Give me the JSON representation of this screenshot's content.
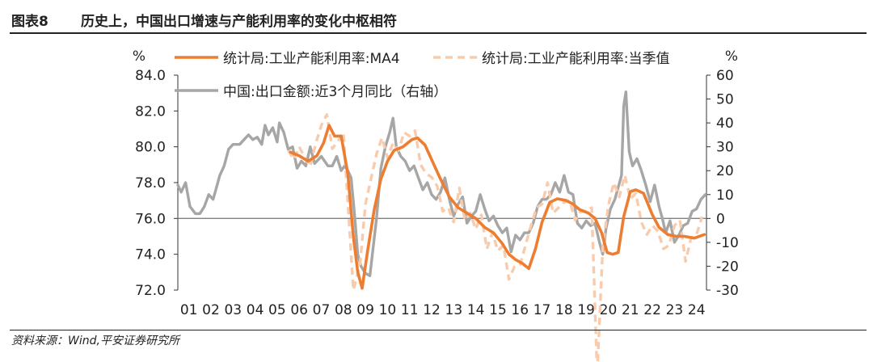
{
  "header": {
    "figure_label": "图表8",
    "title": "历史上，中国出口增速与产能利用率的变化中枢相符"
  },
  "footer": {
    "source": "资料来源：Wind,平安证券研究所"
  },
  "colors": {
    "ma4": "#ED7D31",
    "quarterly": "#F8CBAD",
    "export": "#A6A6A6",
    "baseline": "#808080"
  },
  "chart_data": {
    "type": "line",
    "title": "",
    "left_unit": "%",
    "right_unit": "%",
    "ylim_left": [
      72.0,
      84.0
    ],
    "ylim_right": [
      -30,
      60
    ],
    "yticks_left": [
      "84.0",
      "82.0",
      "80.0",
      "78.0",
      "76.0",
      "74.0",
      "72.0"
    ],
    "yticks_right": [
      "60",
      "50",
      "40",
      "30",
      "20",
      "10",
      "0",
      "-10",
      "-20",
      "-30"
    ],
    "xticks": [
      "01",
      "02",
      "03",
      "04",
      "05",
      "06",
      "07",
      "08",
      "09",
      "10",
      "11",
      "12",
      "13",
      "14",
      "15",
      "16",
      "17",
      "18",
      "19",
      "20",
      "21",
      "22",
      "23",
      "24"
    ],
    "xlim": [
      2001.0,
      2024.95
    ],
    "baseline_right": 0,
    "legend": {
      "ma4": "统计局:工业产能利用率:MA4",
      "quarterly": "统计局:工业产能利用率:当季值",
      "export": "中国:出口金额:近3个月同比（右轴）"
    },
    "series": [
      {
        "name": "统计局:工业产能利用率:MA4",
        "key": "ma4",
        "axis": "left",
        "points": [
          [
            2006.1,
            79.7
          ],
          [
            2006.5,
            79.5
          ],
          [
            2006.9,
            79.2
          ],
          [
            2007.3,
            79.5
          ],
          [
            2007.6,
            80.2
          ],
          [
            2007.85,
            81.2
          ],
          [
            2008.1,
            80.6
          ],
          [
            2008.4,
            80.6
          ],
          [
            2008.7,
            78.5
          ],
          [
            2008.95,
            75.0
          ],
          [
            2009.15,
            73.0
          ],
          [
            2009.35,
            72.1
          ],
          [
            2009.6,
            74.2
          ],
          [
            2009.9,
            76.5
          ],
          [
            2010.2,
            78.2
          ],
          [
            2010.5,
            79.2
          ],
          [
            2010.8,
            79.8
          ],
          [
            2011.2,
            80.0
          ],
          [
            2011.6,
            80.4
          ],
          [
            2011.85,
            80.5
          ],
          [
            2012.2,
            80.1
          ],
          [
            2012.6,
            79.0
          ],
          [
            2012.9,
            78.2
          ],
          [
            2013.3,
            77.2
          ],
          [
            2013.7,
            76.6
          ],
          [
            2014.1,
            76.3
          ],
          [
            2014.5,
            76.0
          ],
          [
            2014.9,
            75.5
          ],
          [
            2015.3,
            75.2
          ],
          [
            2015.7,
            74.6
          ],
          [
            2016.0,
            74.0
          ],
          [
            2016.3,
            73.7
          ],
          [
            2016.6,
            73.5
          ],
          [
            2016.9,
            73.2
          ],
          [
            2017.2,
            74.3
          ],
          [
            2017.5,
            75.8
          ],
          [
            2017.85,
            76.9
          ],
          [
            2018.2,
            77.1
          ],
          [
            2018.6,
            77.0
          ],
          [
            2018.9,
            76.8
          ],
          [
            2019.2,
            76.5
          ],
          [
            2019.6,
            76.3
          ],
          [
            2019.9,
            76.0
          ],
          [
            2020.2,
            75.2
          ],
          [
            2020.45,
            74.1
          ],
          [
            2020.7,
            74.0
          ],
          [
            2020.95,
            74.1
          ],
          [
            2021.2,
            76.1
          ],
          [
            2021.5,
            77.5
          ],
          [
            2021.75,
            77.6
          ],
          [
            2022.1,
            77.4
          ],
          [
            2022.5,
            76.2
          ],
          [
            2022.8,
            75.5
          ],
          [
            2023.2,
            75.1
          ],
          [
            2023.6,
            75.0
          ],
          [
            2023.95,
            75.0
          ],
          [
            2024.4,
            74.9
          ],
          [
            2024.85,
            75.1
          ]
        ]
      },
      {
        "name": "统计局:工业产能利用率:当季值",
        "key": "quarterly",
        "axis": "left",
        "points": [
          [
            2006.0,
            79.8
          ],
          [
            2006.25,
            79.3
          ],
          [
            2006.5,
            80.0
          ],
          [
            2006.75,
            79.4
          ],
          [
            2007.0,
            78.9
          ],
          [
            2007.25,
            80.2
          ],
          [
            2007.5,
            81.2
          ],
          [
            2007.75,
            81.8
          ],
          [
            2008.0,
            79.9
          ],
          [
            2008.25,
            80.3
          ],
          [
            2008.5,
            80.8
          ],
          [
            2008.75,
            76.0
          ],
          [
            2008.95,
            72.0
          ],
          [
            2009.25,
            73.4
          ],
          [
            2009.5,
            76.8
          ],
          [
            2009.75,
            78.2
          ],
          [
            2010.0,
            79.6
          ],
          [
            2010.25,
            80.5
          ],
          [
            2010.5,
            79.4
          ],
          [
            2010.75,
            80.2
          ],
          [
            2011.0,
            79.8
          ],
          [
            2011.25,
            80.8
          ],
          [
            2011.5,
            80.6
          ],
          [
            2011.75,
            80.9
          ],
          [
            2012.0,
            79.0
          ],
          [
            2012.25,
            78.5
          ],
          [
            2012.5,
            78.3
          ],
          [
            2012.75,
            77.8
          ],
          [
            2013.0,
            76.4
          ],
          [
            2013.25,
            76.6
          ],
          [
            2013.5,
            75.8
          ],
          [
            2013.75,
            77.7
          ],
          [
            2014.0,
            75.9
          ],
          [
            2014.25,
            76.3
          ],
          [
            2014.5,
            75.4
          ],
          [
            2014.75,
            76.2
          ],
          [
            2015.0,
            74.3
          ],
          [
            2015.25,
            75.2
          ],
          [
            2015.5,
            74.2
          ],
          [
            2015.75,
            74.5
          ],
          [
            2016.0,
            72.6
          ],
          [
            2016.25,
            73.3
          ],
          [
            2016.5,
            73.4
          ],
          [
            2016.75,
            74.5
          ],
          [
            2017.0,
            75.6
          ],
          [
            2017.25,
            76.6
          ],
          [
            2017.5,
            76.8
          ],
          [
            2017.75,
            78.0
          ],
          [
            2018.0,
            76.3
          ],
          [
            2018.25,
            76.6
          ],
          [
            2018.5,
            76.9
          ],
          [
            2018.75,
            77.0
          ],
          [
            2019.0,
            75.9
          ],
          [
            2019.25,
            76.4
          ],
          [
            2019.5,
            76.4
          ],
          [
            2019.75,
            76.6
          ],
          [
            2020.0,
            67.3
          ],
          [
            2020.25,
            74.4
          ],
          [
            2020.5,
            76.7
          ],
          [
            2020.75,
            78.0
          ],
          [
            2021.0,
            77.2
          ],
          [
            2021.25,
            78.4
          ],
          [
            2021.5,
            77.1
          ],
          [
            2021.75,
            77.4
          ],
          [
            2022.0,
            75.8
          ],
          [
            2022.25,
            75.1
          ],
          [
            2022.5,
            75.6
          ],
          [
            2022.75,
            75.3
          ],
          [
            2023.0,
            74.3
          ],
          [
            2023.25,
            74.5
          ],
          [
            2023.5,
            75.6
          ],
          [
            2023.75,
            75.9
          ],
          [
            2024.0,
            73.6
          ],
          [
            2024.25,
            74.9
          ],
          [
            2024.5,
            75.1
          ],
          [
            2024.75,
            76.1
          ]
        ]
      },
      {
        "name": "中国:出口金额:近3个月同比（右轴）",
        "key": "export",
        "axis": "right",
        "points": [
          [
            2001.0,
            14
          ],
          [
            2001.15,
            11
          ],
          [
            2001.35,
            15
          ],
          [
            2001.55,
            5
          ],
          [
            2001.8,
            2
          ],
          [
            2002.0,
            2
          ],
          [
            2002.2,
            5
          ],
          [
            2002.4,
            10
          ],
          [
            2002.6,
            8
          ],
          [
            2002.9,
            18
          ],
          [
            2003.1,
            22
          ],
          [
            2003.3,
            29
          ],
          [
            2003.5,
            31
          ],
          [
            2003.8,
            31
          ],
          [
            2004.0,
            33
          ],
          [
            2004.2,
            35
          ],
          [
            2004.4,
            33
          ],
          [
            2004.6,
            34
          ],
          [
            2004.8,
            31
          ],
          [
            2004.95,
            39
          ],
          [
            2005.1,
            35
          ],
          [
            2005.3,
            38
          ],
          [
            2005.5,
            32
          ],
          [
            2005.6,
            40
          ],
          [
            2005.8,
            36
          ],
          [
            2006.0,
            29
          ],
          [
            2006.2,
            30
          ],
          [
            2006.4,
            21
          ],
          [
            2006.6,
            24
          ],
          [
            2006.8,
            22
          ],
          [
            2007.0,
            30
          ],
          [
            2007.2,
            23
          ],
          [
            2007.5,
            26
          ],
          [
            2007.8,
            22
          ],
          [
            2008.0,
            22
          ],
          [
            2008.2,
            26
          ],
          [
            2008.4,
            20
          ],
          [
            2008.55,
            22
          ],
          [
            2008.7,
            20
          ],
          [
            2008.85,
            17
          ],
          [
            2009.0,
            2
          ],
          [
            2009.15,
            -15
          ],
          [
            2009.3,
            -20
          ],
          [
            2009.5,
            -23
          ],
          [
            2009.7,
            -24
          ],
          [
            2009.85,
            -12
          ],
          [
            2010.0,
            0
          ],
          [
            2010.2,
            21
          ],
          [
            2010.4,
            30
          ],
          [
            2010.6,
            36
          ],
          [
            2010.75,
            42
          ],
          [
            2010.9,
            30
          ],
          [
            2011.1,
            26
          ],
          [
            2011.3,
            24
          ],
          [
            2011.5,
            20
          ],
          [
            2011.7,
            22
          ],
          [
            2011.9,
            17
          ],
          [
            2012.1,
            12
          ],
          [
            2012.3,
            15
          ],
          [
            2012.5,
            10
          ],
          [
            2012.7,
            8
          ],
          [
            2012.9,
            11
          ],
          [
            2013.1,
            17
          ],
          [
            2013.3,
            8
          ],
          [
            2013.5,
            1
          ],
          [
            2013.7,
            6
          ],
          [
            2013.9,
            9
          ],
          [
            2014.1,
            -2
          ],
          [
            2014.3,
            1
          ],
          [
            2014.5,
            3
          ],
          [
            2014.7,
            10
          ],
          [
            2014.9,
            4
          ],
          [
            2015.1,
            -1
          ],
          [
            2015.3,
            1
          ],
          [
            2015.5,
            -3
          ],
          [
            2015.7,
            -6
          ],
          [
            2015.9,
            -4
          ],
          [
            2016.1,
            -14
          ],
          [
            2016.3,
            -7
          ],
          [
            2016.5,
            -9
          ],
          [
            2016.7,
            -6
          ],
          [
            2016.9,
            -6
          ],
          [
            2017.1,
            -2
          ],
          [
            2017.3,
            5
          ],
          [
            2017.5,
            8
          ],
          [
            2017.7,
            8
          ],
          [
            2017.9,
            10
          ],
          [
            2018.1,
            15
          ],
          [
            2018.3,
            11
          ],
          [
            2018.5,
            18
          ],
          [
            2018.7,
            11
          ],
          [
            2018.9,
            10
          ],
          [
            2019.1,
            -2
          ],
          [
            2019.3,
            -4
          ],
          [
            2019.5,
            -1
          ],
          [
            2019.7,
            -3
          ],
          [
            2019.9,
            -2
          ],
          [
            2020.1,
            -10
          ],
          [
            2020.25,
            -15
          ],
          [
            2020.4,
            -4
          ],
          [
            2020.6,
            4
          ],
          [
            2020.8,
            8
          ],
          [
            2020.95,
            13
          ],
          [
            2021.1,
            18
          ],
          [
            2021.2,
            47
          ],
          [
            2021.3,
            53
          ],
          [
            2021.45,
            28
          ],
          [
            2021.6,
            22
          ],
          [
            2021.8,
            25
          ],
          [
            2022.0,
            20
          ],
          [
            2022.2,
            14
          ],
          [
            2022.4,
            7
          ],
          [
            2022.6,
            14
          ],
          [
            2022.8,
            5
          ],
          [
            2022.95,
            0
          ],
          [
            2023.1,
            -6
          ],
          [
            2023.3,
            -1
          ],
          [
            2023.5,
            -10
          ],
          [
            2023.7,
            -7
          ],
          [
            2023.9,
            -3
          ],
          [
            2024.1,
            -2
          ],
          [
            2024.3,
            3
          ],
          [
            2024.5,
            4
          ],
          [
            2024.7,
            8
          ],
          [
            2024.9,
            10
          ]
        ]
      }
    ]
  }
}
